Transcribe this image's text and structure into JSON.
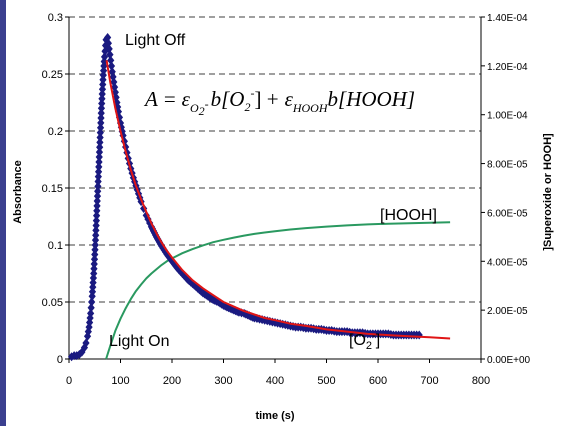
{
  "chart_data": {
    "type": "line",
    "title": "",
    "xlabel": "time (s)",
    "ylabel": "Absorbance",
    "y2label": "]Superoxide or HOOH]",
    "xlim": [
      0,
      800
    ],
    "ylim": [
      0,
      0.3
    ],
    "y2lim": [
      0,
      0.00014
    ],
    "x_ticks": [
      "0",
      "100",
      "200",
      "300",
      "400",
      "500",
      "600",
      "700",
      "800"
    ],
    "y_ticks": [
      "0",
      "0.05",
      "0.1",
      "0.15",
      "0.2",
      "0.25",
      "0.3"
    ],
    "y2_ticks": [
      "0.00E+00",
      "2.00E-05",
      "4.00E-05",
      "6.00E-05",
      "8.00E-05",
      "1.00E-04",
      "1.20E-04",
      "1.40E-04"
    ],
    "grid": "horizontal dashed",
    "annotations": {
      "light_off": "Light Off",
      "light_on": "Light On",
      "hooh": "[HOOH]",
      "o2_main": "[O",
      "o2_sub": "2",
      "o2_sup": "-",
      "o2_close": "]"
    },
    "equation": {
      "lhs": "A",
      "eq": "=",
      "eps": "ε",
      "sub1": "O",
      "sub1b": "2",
      "sub1c": "-",
      "b1": "b[O",
      "o2b": "2",
      "o2sup": "-",
      "close1": "] +",
      "eps2": "ε",
      "sub2": "HOOH",
      "b2": "b[HOOH]"
    },
    "series": [
      {
        "marker": "diamond",
        "color": "#1a1a80",
        "axis": "left",
        "x": [
          5,
          10,
          15,
          20,
          25,
          30,
          33,
          36,
          39,
          42,
          45,
          48,
          51,
          54,
          57,
          60,
          63,
          66,
          69,
          72,
          75,
          78,
          81,
          84,
          87,
          90,
          93,
          96,
          100,
          105,
          110,
          115,
          120,
          125,
          130,
          135,
          140,
          145,
          150,
          160,
          170,
          180,
          190,
          200,
          210,
          220,
          230,
          240,
          250,
          260,
          270,
          280,
          290,
          300,
          310,
          320,
          330,
          340,
          350,
          360,
          370,
          380,
          390,
          400,
          410,
          420,
          430,
          440,
          450,
          460,
          470,
          480,
          490,
          500,
          510,
          520,
          530,
          540,
          550,
          560,
          570,
          580,
          590,
          600,
          610,
          620,
          630,
          640,
          650,
          660,
          670,
          680
        ],
        "y": [
          0.002,
          0.003,
          0.003,
          0.004,
          0.006,
          0.01,
          0.014,
          0.02,
          0.028,
          0.04,
          0.055,
          0.075,
          0.1,
          0.13,
          0.16,
          0.19,
          0.22,
          0.245,
          0.265,
          0.28,
          0.282,
          0.272,
          0.262,
          0.252,
          0.243,
          0.234,
          0.225,
          0.217,
          0.207,
          0.196,
          0.186,
          0.176,
          0.167,
          0.159,
          0.152,
          0.145,
          0.138,
          0.132,
          0.126,
          0.116,
          0.107,
          0.099,
          0.092,
          0.086,
          0.08,
          0.075,
          0.07,
          0.066,
          0.062,
          0.058,
          0.055,
          0.052,
          0.05,
          0.047,
          0.045,
          0.043,
          0.041,
          0.04,
          0.038,
          0.036,
          0.035,
          0.034,
          0.033,
          0.032,
          0.031,
          0.03,
          0.029,
          0.028,
          0.028,
          0.027,
          0.027,
          0.026,
          0.026,
          0.025,
          0.025,
          0.024,
          0.024,
          0.024,
          0.023,
          0.023,
          0.023,
          0.022,
          0.022,
          0.022,
          0.022,
          0.022,
          0.021,
          0.021,
          0.021,
          0.021,
          0.021,
          0.021
        ]
      },
      {
        "marker": "none",
        "color": "#000000",
        "axis": "left",
        "x": [
          300,
          350,
          400,
          450,
          500,
          550,
          600,
          650,
          680
        ],
        "y": [
          0.046,
          0.037,
          0.031,
          0.027,
          0.024,
          0.022,
          0.021,
          0.02,
          0.02
        ]
      },
      {
        "marker": "none",
        "color": "#e01515",
        "axis": "left",
        "x": [
          73,
          80,
          90,
          100,
          110,
          120,
          130,
          140,
          150,
          160,
          170,
          180,
          190,
          200,
          220,
          240,
          260,
          280,
          300,
          320,
          340,
          360,
          380,
          400,
          430,
          460,
          500,
          540,
          580,
          620,
          660,
          700,
          740
        ],
        "y": [
          0.262,
          0.243,
          0.22,
          0.2,
          0.182,
          0.166,
          0.152,
          0.14,
          0.129,
          0.119,
          0.11,
          0.102,
          0.095,
          0.089,
          0.078,
          0.069,
          0.062,
          0.056,
          0.05,
          0.046,
          0.042,
          0.039,
          0.036,
          0.034,
          0.031,
          0.029,
          0.026,
          0.024,
          0.022,
          0.021,
          0.02,
          0.019,
          0.018
        ]
      },
      {
        "marker": "none",
        "color": "#2a9960",
        "axis": "right",
        "x": [
          72,
          80,
          90,
          100,
          110,
          120,
          130,
          140,
          150,
          160,
          170,
          180,
          190,
          200,
          220,
          240,
          260,
          280,
          300,
          320,
          340,
          360,
          380,
          400,
          430,
          460,
          500,
          540,
          580,
          620,
          660,
          700,
          740
        ],
        "y": [
          0,
          5.3e-06,
          1.15e-05,
          1.65e-05,
          2.08e-05,
          2.45e-05,
          2.78e-05,
          3.05e-05,
          3.3e-05,
          3.5e-05,
          3.68e-05,
          3.85e-05,
          4e-05,
          4.12e-05,
          4.33e-05,
          4.5e-05,
          4.65e-05,
          4.78e-05,
          4.88e-05,
          4.97e-05,
          5.05e-05,
          5.12e-05,
          5.18e-05,
          5.23e-05,
          5.3e-05,
          5.36e-05,
          5.42e-05,
          5.47e-05,
          5.51e-05,
          5.54e-05,
          5.56e-05,
          5.58e-05,
          5.6e-05
        ]
      }
    ]
  }
}
